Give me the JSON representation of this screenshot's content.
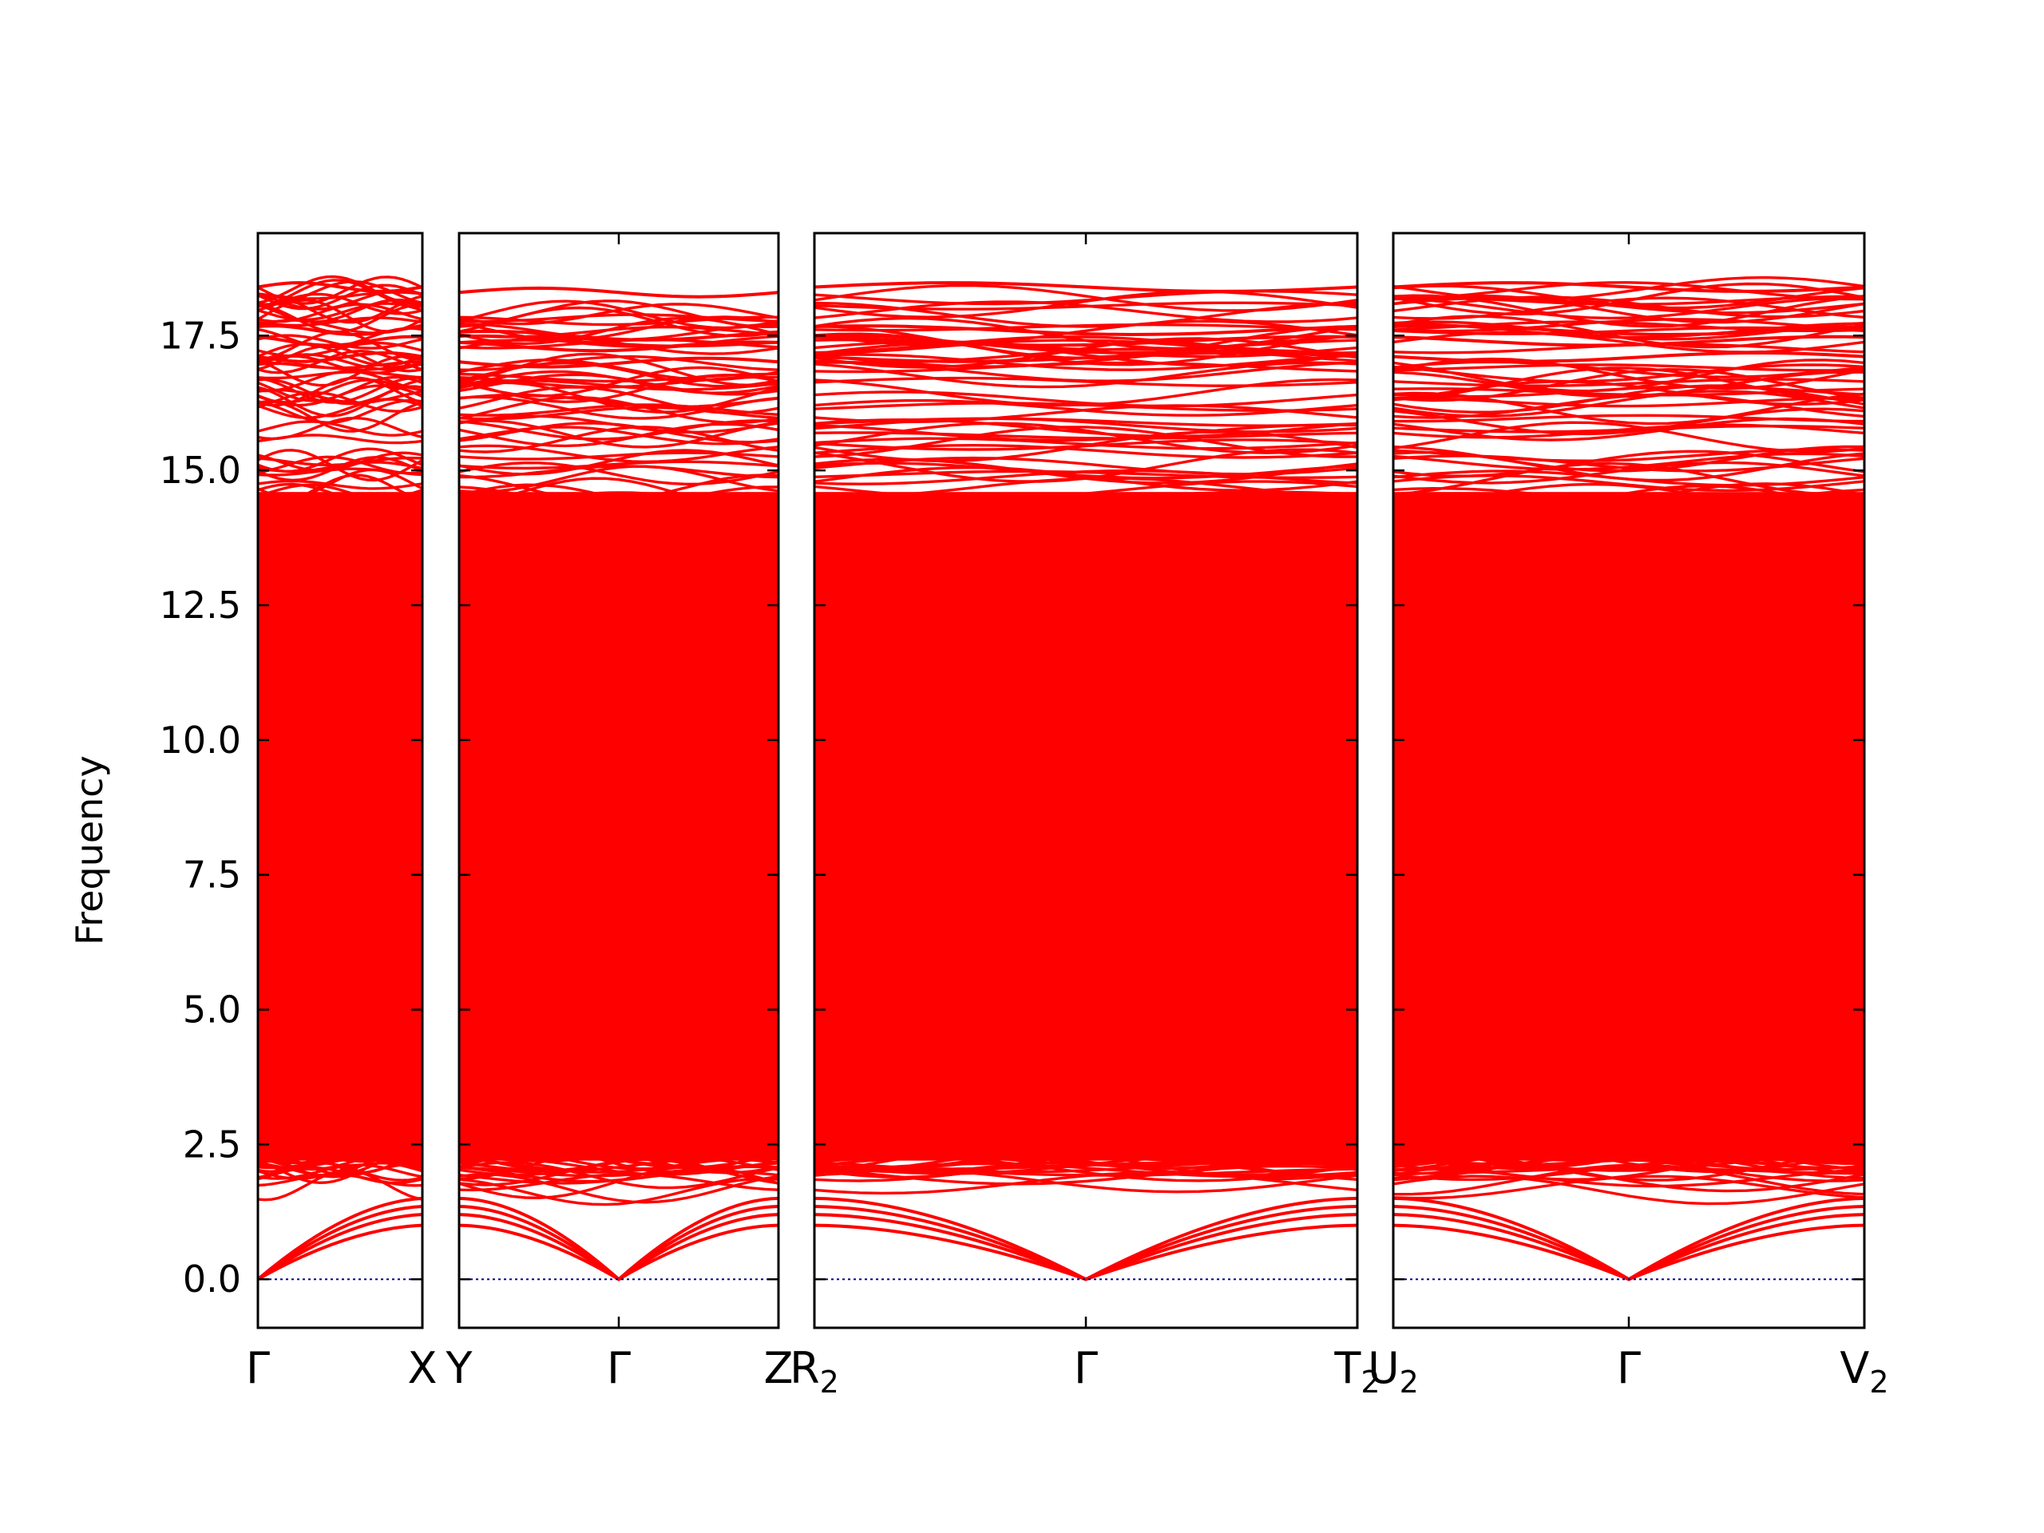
{
  "chart_data": {
    "type": "line",
    "title": "",
    "ylabel": "Frequency",
    "xlabel": "",
    "ylim": [
      -0.9,
      19.4
    ],
    "yticks": [
      "0.0",
      "2.5",
      "5.0",
      "7.5",
      "10.0",
      "12.5",
      "15.0",
      "17.5"
    ],
    "grid": false,
    "band_color": "#ff0000",
    "zero_line_color": "#00008b",
    "panels": [
      {
        "kpoints": [
          "Γ",
          "X"
        ],
        "min_band_frequency": 0.0,
        "max_band_frequency": 18.4
      },
      {
        "kpoints": [
          "Y",
          "Γ",
          "Z"
        ],
        "min_band_frequency": 0.0,
        "max_band_frequency": 18.3
      },
      {
        "kpoints": [
          "R",
          "Γ",
          "T"
        ],
        "kpoint_subscripts": [
          "2",
          "",
          "2"
        ],
        "min_band_frequency": 0.0,
        "max_band_frequency": 18.4
      },
      {
        "kpoints": [
          "U",
          "Γ",
          "V"
        ],
        "kpoint_subscripts": [
          "2",
          "",
          "2"
        ],
        "min_band_frequency": 0.0,
        "max_band_frequency": 18.4
      }
    ]
  }
}
